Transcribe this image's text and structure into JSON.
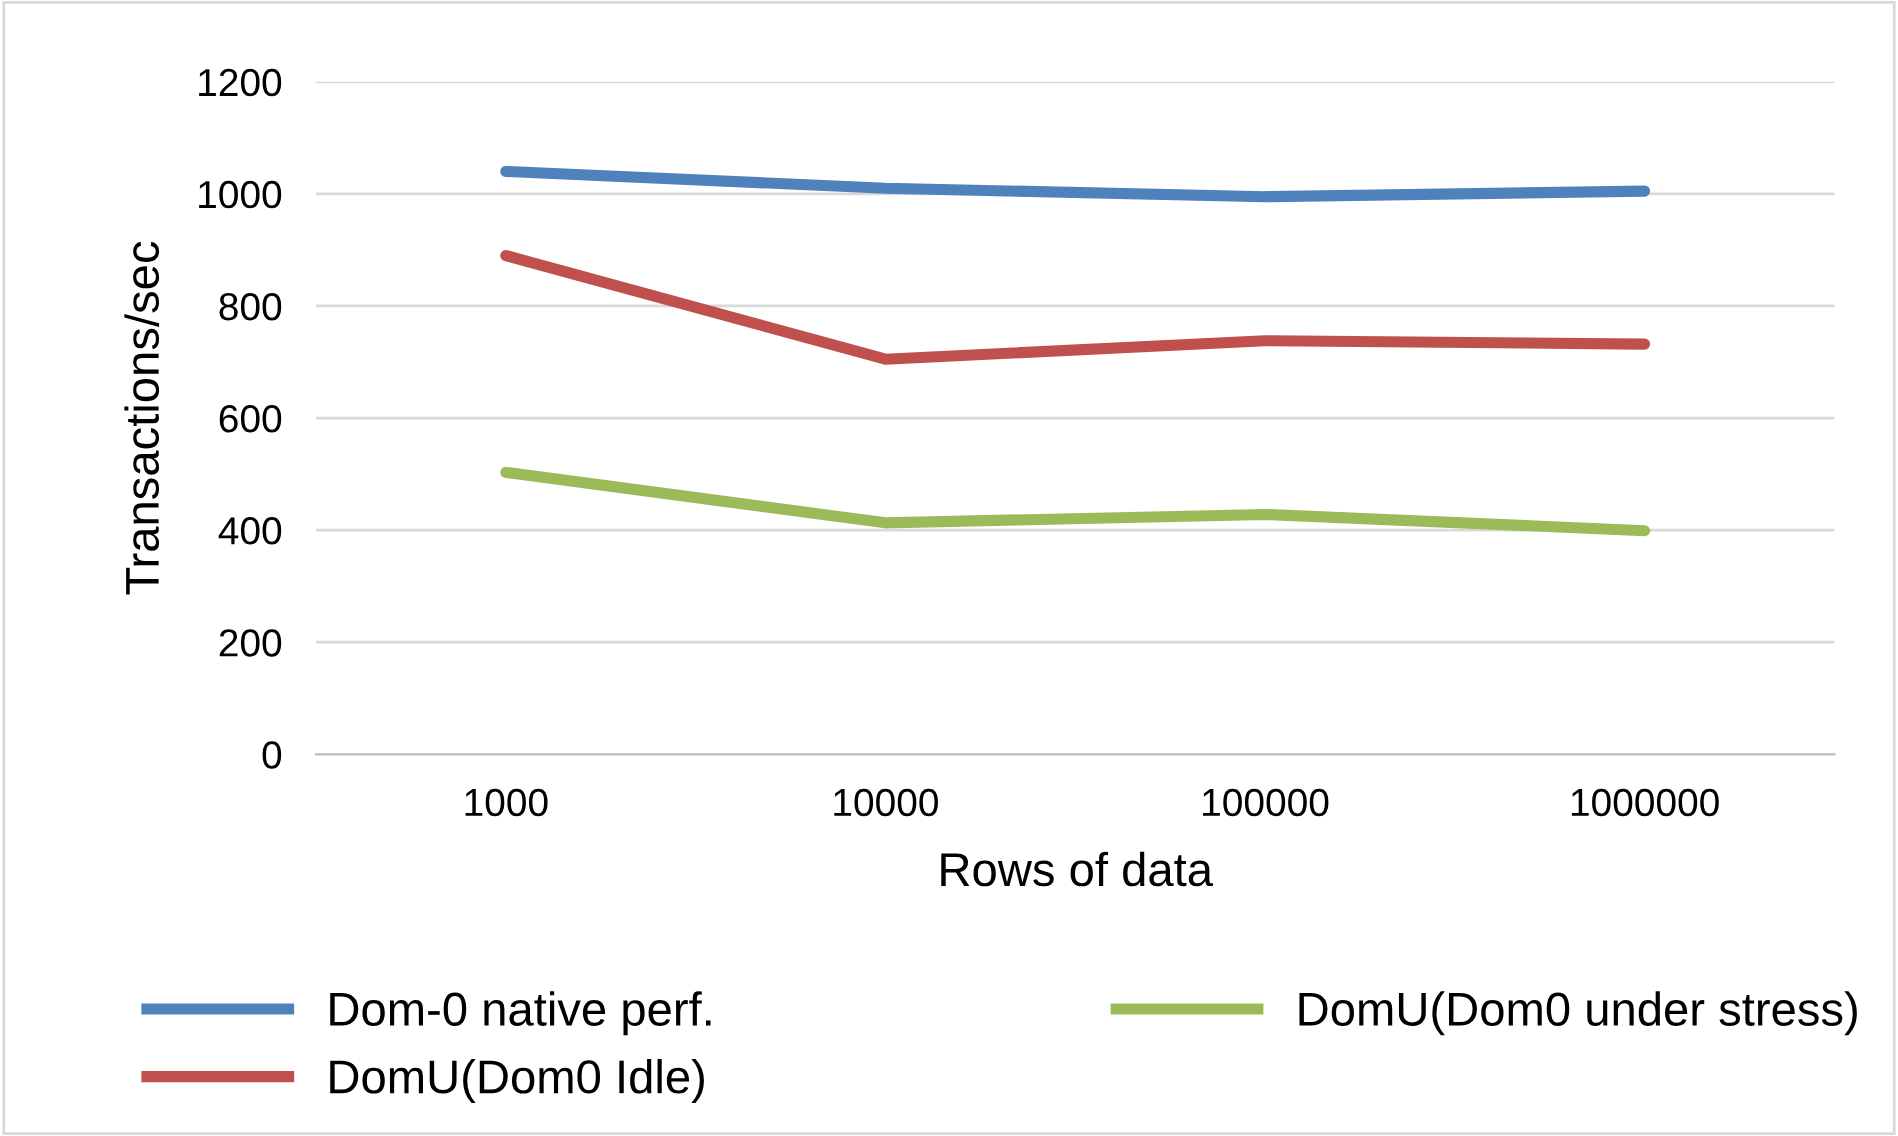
{
  "chart_data": {
    "type": "line",
    "xlabel": "Rows of data",
    "ylabel": "Transactions/sec",
    "categories": [
      "1000",
      "10000",
      "100000",
      "1000000"
    ],
    "series": [
      {
        "name": "Dom-0 native perf.",
        "color": "#4f81bd",
        "values": [
          1040,
          1010,
          995,
          1005
        ]
      },
      {
        "name": "DomU(Dom0 Idle)",
        "color": "#c0504d",
        "values": [
          890,
          705,
          738,
          732
        ]
      },
      {
        "name": "DomU(Dom0 under stress)",
        "color": "#9bbb59",
        "values": [
          503,
          413,
          428,
          399
        ]
      }
    ],
    "ylim": [
      0,
      1200
    ],
    "yticks": [
      0,
      200,
      400,
      600,
      800,
      1000,
      1200
    ],
    "grid": "y",
    "legend": "bottom",
    "marker": "none",
    "line_style": "solid"
  }
}
